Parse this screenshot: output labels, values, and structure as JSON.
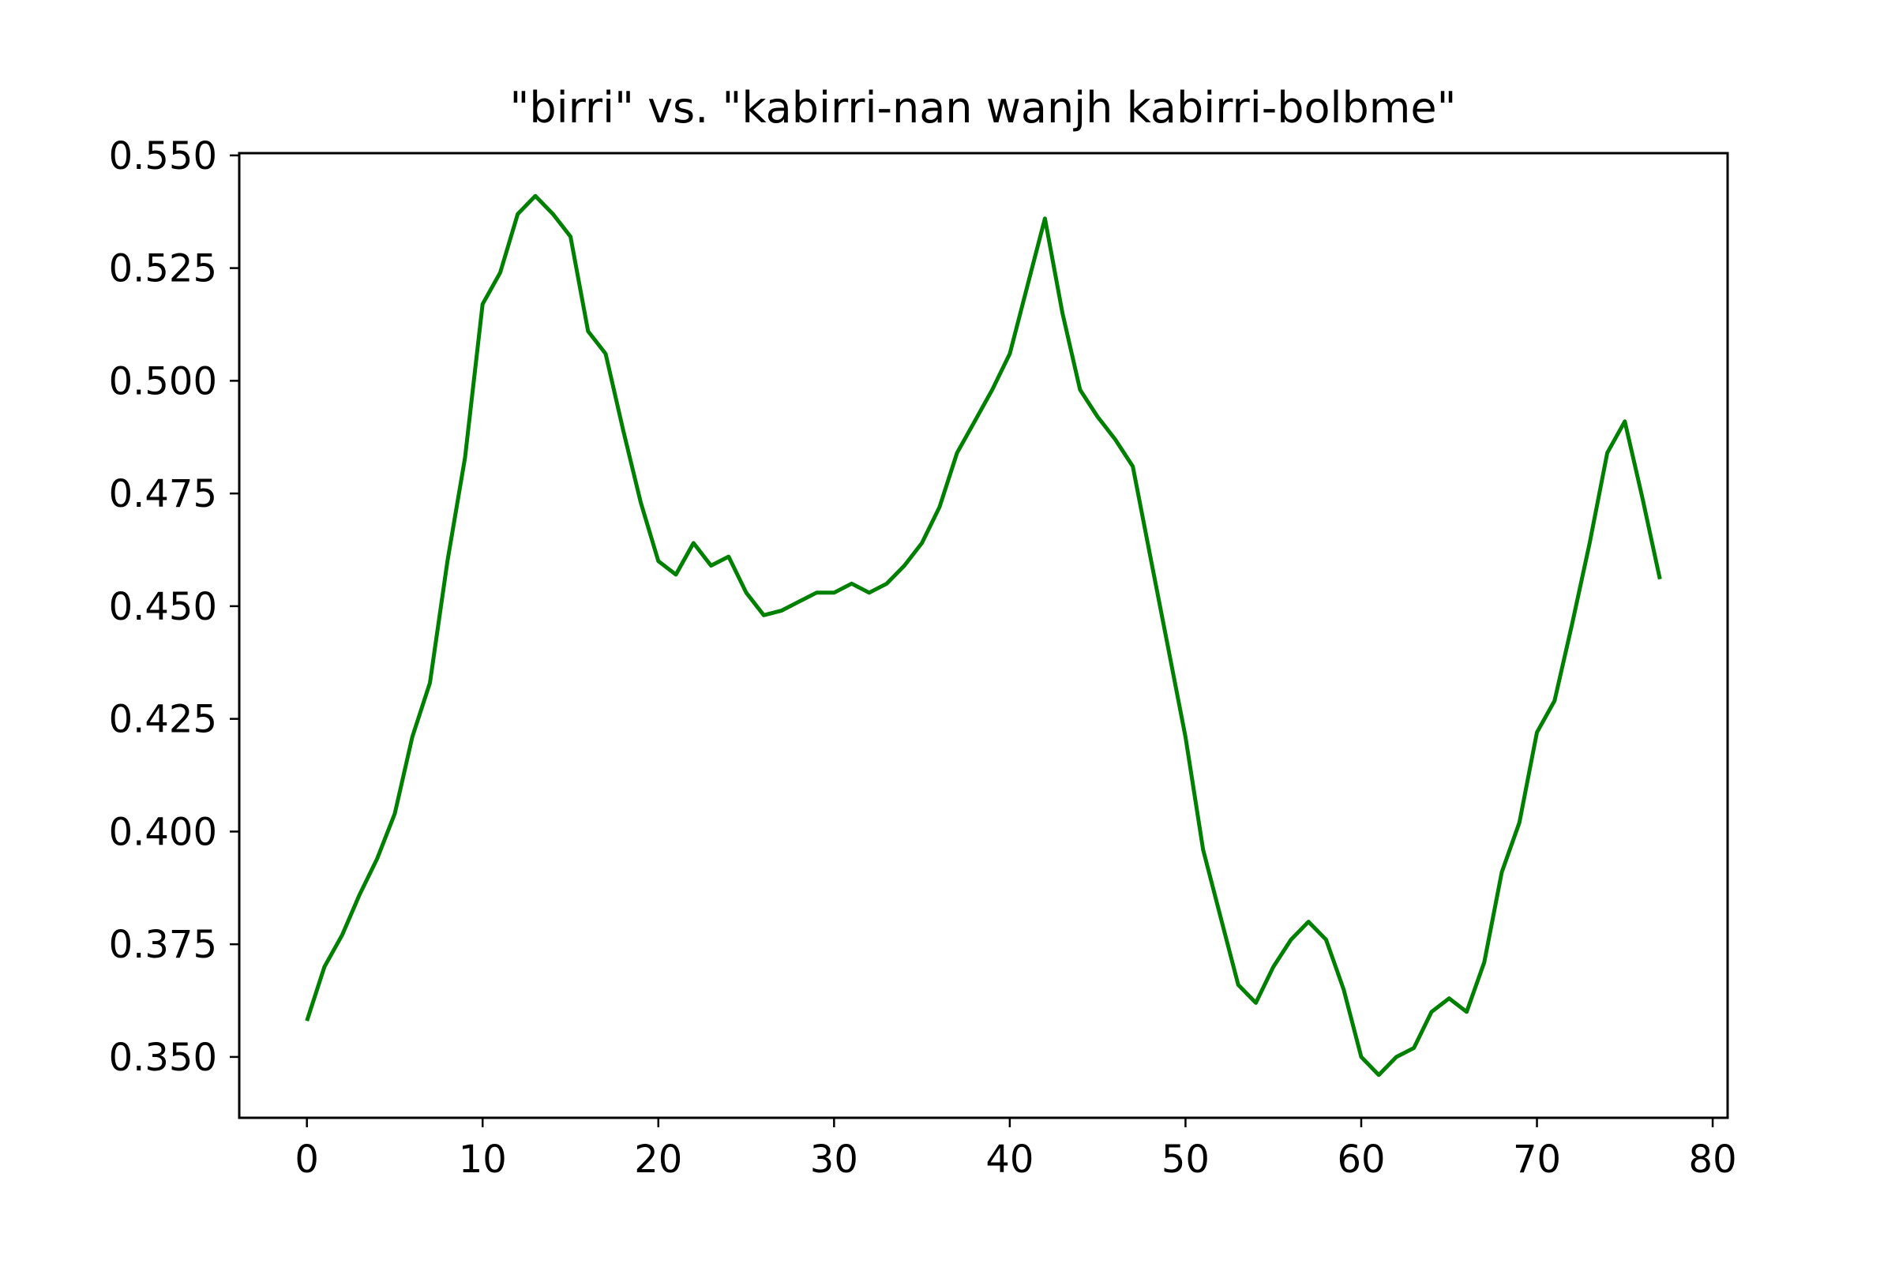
{
  "chart_data": {
    "type": "line",
    "title": "\"birri\" vs. \"kabirri-nan wanjh kabirri-bolbme\"",
    "xlabel": "",
    "ylabel": "",
    "xlim": [
      -3.85,
      80.85
    ],
    "ylim": [
      0.3365,
      0.5505
    ],
    "xticks": [
      0,
      10,
      20,
      30,
      40,
      50,
      60,
      70,
      80
    ],
    "xtick_labels": [
      "0",
      "10",
      "20",
      "30",
      "40",
      "50",
      "60",
      "70",
      "80"
    ],
    "yticks": [
      0.35,
      0.375,
      0.4,
      0.425,
      0.45,
      0.475,
      0.5,
      0.525,
      0.55
    ],
    "ytick_labels": [
      "0.350",
      "0.375",
      "0.400",
      "0.425",
      "0.450",
      "0.475",
      "0.500",
      "0.525",
      "0.550"
    ],
    "grid": false,
    "legend": false,
    "series": [
      {
        "color": "#008000",
        "x": [
          0,
          1,
          2,
          3,
          4,
          5,
          6,
          7,
          8,
          9,
          10,
          11,
          12,
          13,
          14,
          15,
          16,
          17,
          18,
          19,
          20,
          21,
          22,
          23,
          24,
          25,
          26,
          27,
          28,
          29,
          30,
          31,
          32,
          33,
          34,
          35,
          36,
          37,
          38,
          39,
          40,
          41,
          42,
          43,
          44,
          45,
          46,
          47,
          48,
          49,
          50,
          51,
          52,
          53,
          54,
          55,
          56,
          57,
          58,
          59,
          60,
          61,
          62,
          63,
          64,
          65,
          66,
          67,
          68,
          69,
          70,
          71,
          72,
          73,
          74,
          75,
          76,
          77
        ],
        "y": [
          0.358,
          0.37,
          0.377,
          0.386,
          0.394,
          0.404,
          0.421,
          0.433,
          0.46,
          0.483,
          0.517,
          0.524,
          0.537,
          0.541,
          0.537,
          0.532,
          0.511,
          0.506,
          0.489,
          0.473,
          0.46,
          0.457,
          0.464,
          0.459,
          0.461,
          0.453,
          0.448,
          0.449,
          0.451,
          0.453,
          0.453,
          0.455,
          0.453,
          0.455,
          0.459,
          0.464,
          0.472,
          0.484,
          0.491,
          0.498,
          0.506,
          0.521,
          0.536,
          0.515,
          0.498,
          0.492,
          0.487,
          0.481,
          0.461,
          0.441,
          0.421,
          0.396,
          0.381,
          0.366,
          0.362,
          0.37,
          0.376,
          0.38,
          0.376,
          0.365,
          0.35,
          0.346,
          0.35,
          0.352,
          0.36,
          0.363,
          0.36,
          0.371,
          0.391,
          0.402,
          0.422,
          0.429,
          0.446,
          0.464,
          0.484,
          0.491,
          0.474,
          0.456
        ]
      }
    ]
  }
}
